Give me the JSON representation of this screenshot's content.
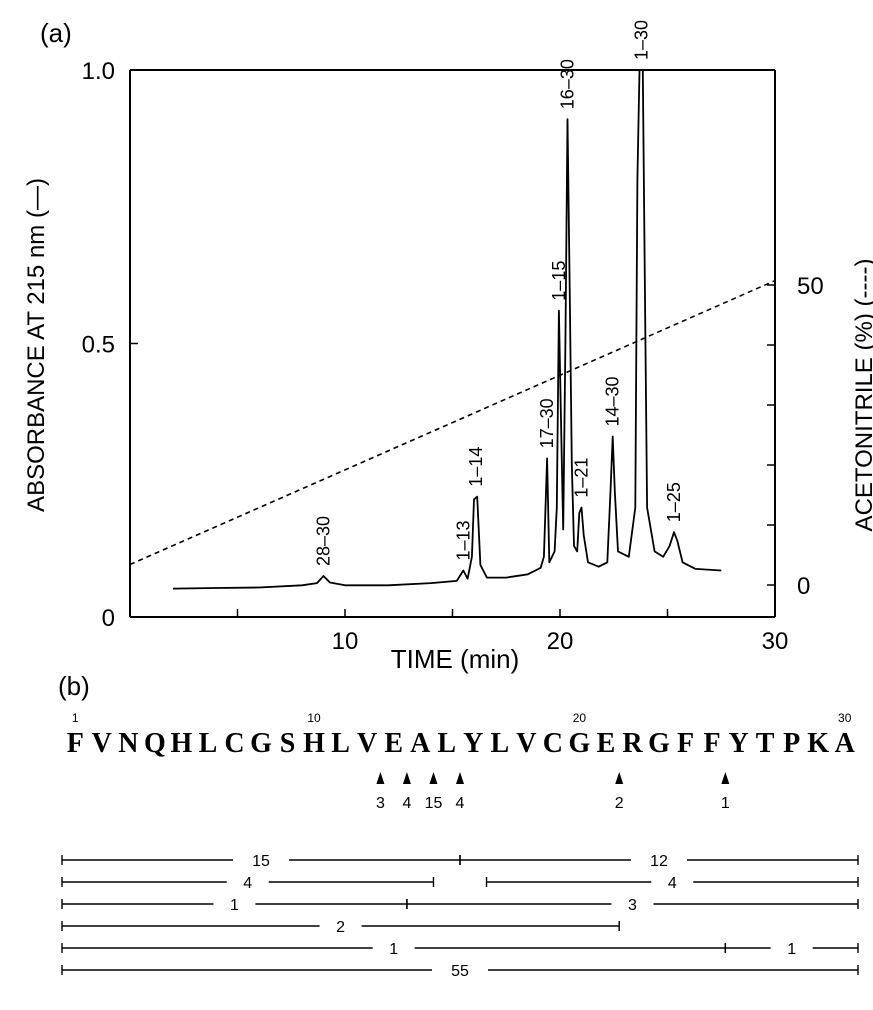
{
  "panels": {
    "a_label": "(a)",
    "b_label": "(b)"
  },
  "chart_data": {
    "type": "line",
    "xlabel": "TIME (min)",
    "ylabel_left": "ABSORBANCE AT 215 nm (—)",
    "ylabel_right": "ACETONITRILE (%) (----)",
    "xlim": [
      0,
      30
    ],
    "ylim_left": [
      0,
      1.0
    ],
    "ylim_right_ticks": [
      0,
      50
    ],
    "x_ticks": [
      "10",
      "20",
      "30"
    ],
    "y_left_ticks": [
      "0",
      "0.5",
      "1.0"
    ],
    "y_right_ticks": [
      "0",
      "50"
    ],
    "series": [
      {
        "style": "solid",
        "points": [
          [
            2,
            0.052
          ],
          [
            4,
            0.053
          ],
          [
            6,
            0.054
          ],
          [
            8,
            0.058
          ],
          [
            8.7,
            0.062
          ],
          [
            9.0,
            0.075
          ],
          [
            9.3,
            0.063
          ],
          [
            10,
            0.058
          ],
          [
            12,
            0.058
          ],
          [
            14,
            0.062
          ],
          [
            15.2,
            0.066
          ],
          [
            15.5,
            0.085
          ],
          [
            15.7,
            0.07
          ],
          [
            15.9,
            0.11
          ],
          [
            16.0,
            0.215
          ],
          [
            16.15,
            0.22
          ],
          [
            16.3,
            0.095
          ],
          [
            16.6,
            0.072
          ],
          [
            17.5,
            0.072
          ],
          [
            18.5,
            0.078
          ],
          [
            19.1,
            0.09
          ],
          [
            19.25,
            0.11
          ],
          [
            19.4,
            0.29
          ],
          [
            19.5,
            0.1
          ],
          [
            19.75,
            0.12
          ],
          [
            19.85,
            0.2
          ],
          [
            19.95,
            0.56
          ],
          [
            20.05,
            0.35
          ],
          [
            20.15,
            0.16
          ],
          [
            20.25,
            0.5
          ],
          [
            20.35,
            0.91
          ],
          [
            20.45,
            0.6
          ],
          [
            20.55,
            0.28
          ],
          [
            20.65,
            0.13
          ],
          [
            20.8,
            0.12
          ],
          [
            20.9,
            0.19
          ],
          [
            21.0,
            0.2
          ],
          [
            21.1,
            0.15
          ],
          [
            21.3,
            0.1
          ],
          [
            21.8,
            0.092
          ],
          [
            22.2,
            0.1
          ],
          [
            22.35,
            0.23
          ],
          [
            22.45,
            0.33
          ],
          [
            22.55,
            0.23
          ],
          [
            22.7,
            0.12
          ],
          [
            23.2,
            0.11
          ],
          [
            23.5,
            0.2
          ],
          [
            23.6,
            0.8
          ],
          [
            23.7,
            1.0
          ],
          [
            23.85,
            1.0
          ],
          [
            23.95,
            0.6
          ],
          [
            24.05,
            0.2
          ],
          [
            24.4,
            0.12
          ],
          [
            24.8,
            0.11
          ],
          [
            25.1,
            0.13
          ],
          [
            25.3,
            0.155
          ],
          [
            25.45,
            0.14
          ],
          [
            25.7,
            0.1
          ],
          [
            26.3,
            0.088
          ],
          [
            27.5,
            0.085
          ]
        ]
      },
      {
        "style": "dashed",
        "points": [
          [
            0,
            0.096
          ],
          [
            30,
            0.615
          ]
        ]
      }
    ],
    "annotations": [
      {
        "text": "28–30",
        "x": 9.0,
        "y": 0.075
      },
      {
        "text": "1–13",
        "x": 15.5,
        "y": 0.085
      },
      {
        "text": "1–14",
        "x": 16.1,
        "y": 0.22
      },
      {
        "text": "17–30",
        "x": 19.4,
        "y": 0.29
      },
      {
        "text": "1–15",
        "x": 19.95,
        "y": 0.56
      },
      {
        "text": "16–30",
        "x": 20.35,
        "y": 0.91
      },
      {
        "text": "1–21",
        "x": 21.0,
        "y": 0.2
      },
      {
        "text": "14–30",
        "x": 22.45,
        "y": 0.33
      },
      {
        "text": "1–30",
        "x": 23.8,
        "y": 1.0
      },
      {
        "text": "1–25",
        "x": 25.3,
        "y": 0.155
      }
    ]
  },
  "sequence": {
    "residues": "FVNQHLCGSHLVEALYLVCGERGFFYTPKA",
    "position_labels": [
      {
        "pos": 1,
        "text": "1"
      },
      {
        "pos": 10,
        "text": "10"
      },
      {
        "pos": 20,
        "text": "20"
      },
      {
        "pos": 30,
        "text": "30"
      }
    ],
    "cleavage_sites": [
      {
        "after": 12,
        "count": "3"
      },
      {
        "after": 13,
        "count": "4"
      },
      {
        "after": 14,
        "count": "15"
      },
      {
        "after": 15,
        "count": "4"
      },
      {
        "after": 21,
        "count": "2"
      },
      {
        "after": 25,
        "count": "1"
      }
    ],
    "fragments": [
      {
        "start": 1,
        "end": 15,
        "count": "15"
      },
      {
        "start": 16,
        "end": 30,
        "count": "12"
      },
      {
        "start": 1,
        "end": 14,
        "count": "4"
      },
      {
        "start": 17,
        "end": 30,
        "count": "4"
      },
      {
        "start": 1,
        "end": 13,
        "count": "1"
      },
      {
        "start": 14,
        "end": 30,
        "count": "3"
      },
      {
        "start": 1,
        "end": 21,
        "count": "2"
      },
      {
        "start": 1,
        "end": 25,
        "count": "1"
      },
      {
        "start": 26,
        "end": 30,
        "count": "1"
      },
      {
        "start": 1,
        "end": 30,
        "count": "55"
      }
    ]
  }
}
